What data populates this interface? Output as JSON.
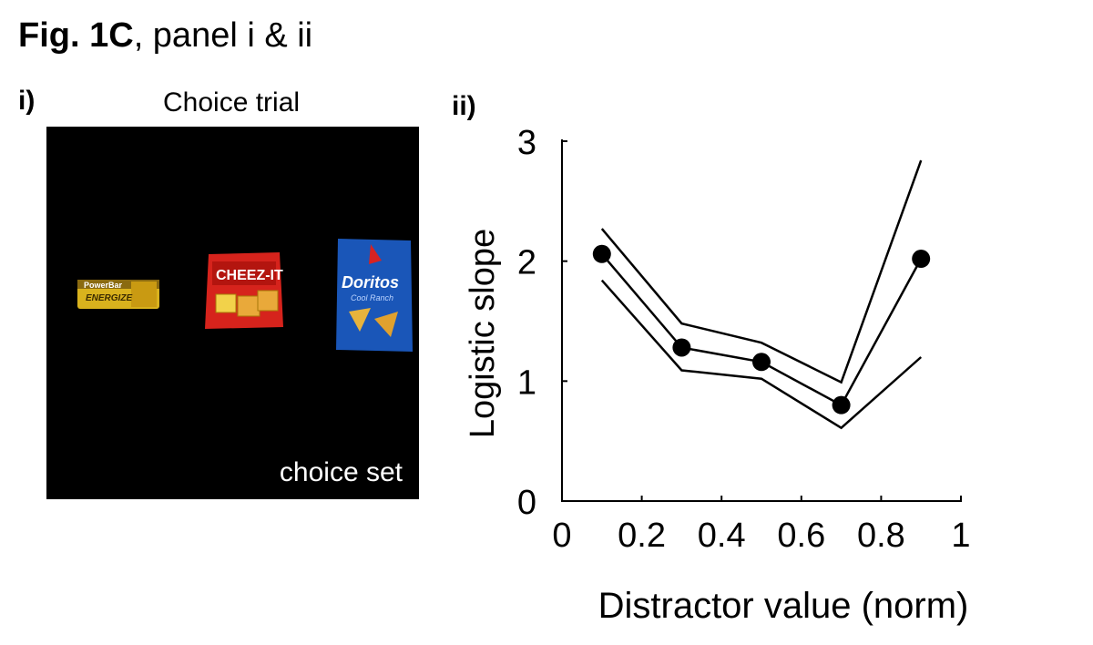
{
  "figure": {
    "title_bold": "Fig. 1C",
    "title_rest": ", panel i & ii"
  },
  "panel_i": {
    "label": "i)",
    "title": "Choice trial",
    "caption": "choice set",
    "items": [
      {
        "name": "powerbar",
        "brand": "PowerBar",
        "sub": "ENERGIZE"
      },
      {
        "name": "cheezit",
        "brand": "CHEEZ-IT"
      },
      {
        "name": "doritos",
        "brand": "Doritos",
        "sub": "Cool Ranch"
      }
    ]
  },
  "panel_ii": {
    "label": "ii)"
  },
  "chart_data": {
    "type": "line",
    "xlabel": "Distractor value (norm)",
    "ylabel": "Logistic slope",
    "xlim": [
      0,
      1
    ],
    "ylim": [
      0,
      3
    ],
    "xticks": [
      0,
      0.2,
      0.4,
      0.6,
      0.8,
      1
    ],
    "xtick_labels": [
      "0",
      "0.2",
      "0.4",
      "0.6",
      "0.8",
      "1"
    ],
    "yticks": [
      0,
      1,
      2,
      3
    ],
    "ytick_labels": [
      "0",
      "1",
      "2",
      "3"
    ],
    "series": [
      {
        "name": "mean",
        "style": "line+markers",
        "x": [
          0.1,
          0.3,
          0.5,
          0.7,
          0.9
        ],
        "y": [
          2.06,
          1.28,
          1.16,
          0.8,
          2.02
        ]
      },
      {
        "name": "upper",
        "style": "line",
        "x": [
          0.1,
          0.3,
          0.5,
          0.7,
          0.9
        ],
        "y": [
          2.27,
          1.48,
          1.32,
          0.99,
          2.84
        ]
      },
      {
        "name": "lower",
        "style": "line",
        "x": [
          0.1,
          0.3,
          0.5,
          0.7,
          0.9
        ],
        "y": [
          1.84,
          1.09,
          1.02,
          0.61,
          1.2
        ]
      }
    ],
    "colors": {
      "line": "#000000",
      "marker": "#000000"
    }
  }
}
